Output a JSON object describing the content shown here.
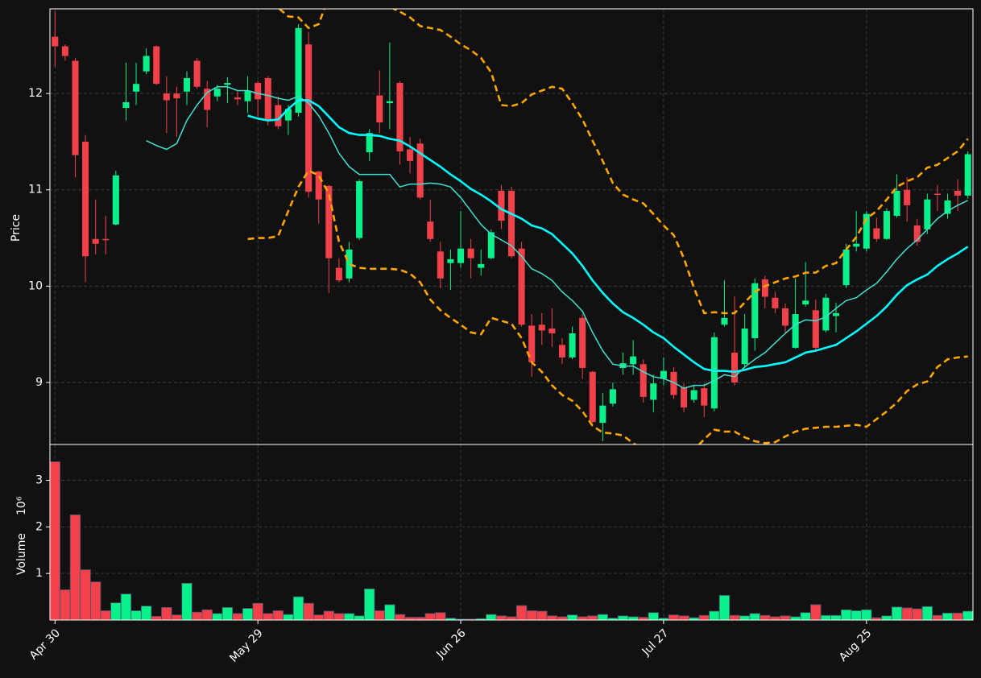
{
  "chart_data": {
    "type": "candlestick",
    "ylabel": "Price",
    "categories": [
      "Apr 30",
      null,
      null,
      null,
      null,
      null,
      null,
      null,
      null,
      null,
      null,
      null,
      null,
      null,
      null,
      null,
      null,
      null,
      null,
      null,
      "May 29",
      null,
      null,
      null,
      null,
      null,
      null,
      null,
      null,
      null,
      null,
      null,
      null,
      null,
      null,
      null,
      null,
      null,
      null,
      null,
      "Jun 26",
      null,
      null,
      null,
      null,
      null,
      null,
      null,
      null,
      null,
      null,
      null,
      null,
      null,
      null,
      null,
      null,
      null,
      null,
      null,
      "Jul 27",
      null,
      null,
      null,
      null,
      null,
      null,
      null,
      null,
      null,
      null,
      null,
      null,
      null,
      null,
      null,
      null,
      null,
      null,
      null,
      "Aug 25",
      null,
      null,
      null,
      null,
      null,
      null,
      null,
      null,
      null,
      null
    ],
    "open": [
      12.59,
      12.49,
      12.34,
      11.5,
      10.49,
      10.49,
      10.64,
      11.85,
      12.02,
      12.23,
      12.49,
      12.0,
      12.0,
      12.02,
      12.34,
      12.05,
      11.97,
      12.09,
      11.96,
      11.92,
      12.11,
      12.16,
      11.88,
      11.72,
      11.8,
      12.51,
      11.19,
      11.04,
      10.19,
      10.08,
      10.5,
      11.39,
      11.98,
      11.9,
      12.11,
      11.42,
      11.48,
      10.67,
      10.36,
      10.24,
      10.24,
      10.39,
      10.19,
      10.29,
      10.99,
      10.99,
      10.39,
      9.59,
      9.6,
      9.56,
      9.39,
      9.26,
      9.67,
      9.11,
      8.58,
      8.78,
      9.15,
      9.19,
      9.19,
      8.82,
      9.04,
      9.11,
      8.95,
      8.82,
      8.94,
      8.73,
      9.6,
      9.31,
      9.19,
      9.46,
      10.07,
      9.88,
      9.77,
      9.36,
      9.81,
      9.75,
      9.54,
      9.69,
      10.01,
      10.41,
      10.39,
      10.6,
      10.49,
      10.73,
      11.0,
      10.63,
      10.59,
      10.96,
      10.75,
      10.99,
      10.94
    ],
    "high": [
      12.85,
      12.51,
      12.37,
      11.57,
      10.9,
      10.73,
      11.2,
      12.32,
      12.32,
      12.47,
      12.5,
      12.18,
      12.07,
      12.23,
      12.37,
      12.13,
      12.09,
      12.17,
      12.02,
      12.18,
      12.13,
      12.18,
      11.97,
      11.88,
      12.72,
      12.64,
      11.2,
      11.05,
      10.29,
      10.46,
      11.11,
      11.63,
      12.24,
      12.53,
      12.13,
      11.55,
      11.53,
      10.9,
      10.46,
      10.38,
      10.78,
      10.49,
      10.38,
      10.59,
      11.05,
      11.03,
      10.46,
      9.71,
      9.72,
      9.77,
      9.46,
      9.58,
      9.71,
      9.12,
      8.89,
      9.0,
      9.31,
      9.44,
      9.24,
      9.08,
      9.26,
      9.16,
      8.99,
      8.97,
      8.99,
      9.52,
      10.06,
      9.89,
      9.71,
      10.08,
      10.11,
      9.94,
      9.82,
      10.08,
      10.25,
      9.86,
      9.92,
      9.83,
      10.44,
      10.78,
      10.78,
      10.71,
      10.81,
      11.16,
      11.13,
      10.7,
      10.96,
      11.05,
      10.96,
      11.11,
      11.4
    ],
    "low": [
      12.28,
      12.34,
      11.13,
      10.04,
      10.33,
      10.33,
      10.63,
      11.72,
      11.88,
      12.2,
      12.09,
      11.59,
      11.55,
      11.88,
      12.05,
      11.65,
      11.92,
      11.9,
      11.88,
      11.8,
      11.76,
      11.67,
      11.63,
      11.57,
      11.76,
      10.92,
      10.65,
      9.93,
      10.04,
      10.04,
      10.48,
      11.3,
      11.59,
      11.63,
      11.26,
      11.17,
      10.9,
      10.46,
      9.98,
      9.96,
      10.19,
      10.08,
      10.11,
      10.28,
      10.59,
      10.29,
      9.58,
      9.06,
      9.39,
      9.37,
      9.19,
      9.24,
      9.04,
      8.58,
      8.39,
      8.75,
      9.08,
      9.08,
      8.79,
      8.69,
      8.97,
      8.83,
      8.69,
      8.79,
      8.64,
      8.7,
      9.58,
      8.97,
      9.16,
      9.33,
      9.77,
      9.72,
      9.52,
      9.35,
      9.79,
      9.32,
      9.52,
      9.52,
      9.98,
      10.36,
      10.36,
      10.46,
      10.48,
      10.71,
      10.67,
      10.42,
      10.54,
      10.78,
      10.7,
      10.78,
      10.91
    ],
    "close": [
      12.49,
      12.39,
      11.36,
      10.31,
      10.44,
      10.48,
      11.15,
      11.91,
      12.1,
      12.39,
      12.1,
      11.93,
      11.95,
      12.16,
      12.07,
      11.83,
      12.05,
      12.11,
      11.94,
      12.03,
      11.94,
      11.72,
      11.66,
      11.84,
      12.68,
      10.98,
      10.9,
      10.29,
      10.06,
      10.38,
      11.09,
      11.59,
      11.7,
      11.92,
      11.4,
      11.3,
      10.92,
      10.49,
      10.08,
      10.28,
      10.39,
      10.29,
      10.23,
      10.56,
      10.68,
      10.31,
      9.6,
      9.21,
      9.54,
      9.51,
      9.26,
      9.51,
      9.15,
      8.59,
      8.76,
      8.93,
      9.2,
      9.27,
      8.85,
      8.99,
      9.12,
      8.87,
      8.74,
      8.92,
      8.76,
      9.47,
      9.67,
      9.0,
      9.56,
      10.03,
      9.89,
      9.77,
      9.59,
      9.71,
      9.85,
      9.36,
      9.88,
      9.72,
      10.38,
      10.44,
      10.75,
      10.49,
      10.78,
      10.99,
      10.84,
      10.46,
      10.9,
      10.95,
      10.89,
      10.94,
      11.37
    ],
    "up_color": "#08f08a",
    "down_color": "#f2414a",
    "overlays": [
      {
        "color": "#40e0d0",
        "width": 1.5,
        "dashed": false,
        "values": [
          null,
          null,
          null,
          null,
          null,
          null,
          null,
          null,
          null,
          11.51,
          11.46,
          11.42,
          11.48,
          11.72,
          11.88,
          12.01,
          12.07,
          12.07,
          12.03,
          12.03,
          12.0,
          11.98,
          11.95,
          11.93,
          11.97,
          11.9,
          11.77,
          11.59,
          11.38,
          11.24,
          11.16,
          11.16,
          11.16,
          11.16,
          11.03,
          11.06,
          11.06,
          11.07,
          11.06,
          11.03,
          10.92,
          10.78,
          10.64,
          10.54,
          10.48,
          10.42,
          10.31,
          10.18,
          10.13,
          10.06,
          9.94,
          9.85,
          9.74,
          9.52,
          9.33,
          9.19,
          9.17,
          9.17,
          9.11,
          9.06,
          9.04,
          9.0,
          8.94,
          8.97,
          8.97,
          9.02,
          9.08,
          9.06,
          9.16,
          9.24,
          9.31,
          9.41,
          9.51,
          9.6,
          9.65,
          9.64,
          9.68,
          9.77,
          9.85,
          9.88,
          9.96,
          10.03,
          10.15,
          10.28,
          10.39,
          10.48,
          10.59,
          10.7,
          10.78,
          10.84,
          10.89
        ]
      },
      {
        "color": "#00ffff",
        "width": 2.6,
        "dashed": false,
        "values": [
          null,
          null,
          null,
          null,
          null,
          null,
          null,
          null,
          null,
          null,
          null,
          null,
          null,
          null,
          null,
          null,
          null,
          null,
          null,
          11.77,
          11.74,
          11.72,
          11.73,
          11.84,
          11.93,
          11.93,
          11.87,
          11.76,
          11.65,
          11.59,
          11.57,
          11.57,
          11.56,
          11.53,
          11.51,
          11.45,
          11.38,
          11.31,
          11.24,
          11.16,
          11.09,
          11.01,
          10.95,
          10.88,
          10.8,
          10.75,
          10.7,
          10.63,
          10.6,
          10.54,
          10.44,
          10.34,
          10.21,
          10.06,
          9.93,
          9.82,
          9.73,
          9.67,
          9.6,
          9.52,
          9.46,
          9.37,
          9.29,
          9.21,
          9.14,
          9.12,
          9.12,
          9.11,
          9.13,
          9.16,
          9.17,
          9.19,
          9.21,
          9.26,
          9.31,
          9.33,
          9.36,
          9.39,
          9.46,
          9.53,
          9.61,
          9.69,
          9.79,
          9.91,
          10.01,
          10.07,
          10.12,
          10.21,
          10.28,
          10.34,
          10.41
        ]
      },
      {
        "color": "#ffa500",
        "width": 2.6,
        "dashed": true,
        "values": [
          null,
          null,
          null,
          null,
          null,
          null,
          null,
          null,
          null,
          null,
          null,
          null,
          null,
          null,
          null,
          null,
          null,
          null,
          null,
          13.31,
          13.18,
          13.01,
          12.89,
          12.8,
          12.79,
          12.68,
          12.72,
          13.01,
          13.14,
          13.18,
          13.18,
          13.14,
          13.01,
          12.9,
          12.85,
          12.79,
          12.7,
          12.68,
          12.66,
          12.59,
          12.51,
          12.45,
          12.37,
          12.22,
          11.88,
          11.87,
          11.9,
          11.99,
          12.03,
          12.07,
          12.05,
          11.9,
          11.73,
          11.51,
          11.3,
          11.07,
          10.95,
          10.9,
          10.86,
          10.75,
          10.63,
          10.53,
          10.29,
          9.98,
          9.72,
          9.73,
          9.72,
          9.72,
          9.83,
          9.94,
          10.0,
          10.04,
          10.08,
          10.1,
          10.14,
          10.14,
          10.21,
          10.24,
          10.38,
          10.51,
          10.7,
          10.78,
          10.9,
          11.03,
          11.09,
          11.13,
          11.23,
          11.26,
          11.33,
          11.4,
          11.53
        ]
      },
      {
        "color": "#ffa500",
        "width": 2.6,
        "dashed": true,
        "values": [
          null,
          null,
          null,
          null,
          null,
          null,
          null,
          null,
          null,
          null,
          null,
          null,
          null,
          null,
          null,
          null,
          null,
          null,
          null,
          10.49,
          10.5,
          10.5,
          10.52,
          10.78,
          11.03,
          11.2,
          11.15,
          10.96,
          10.46,
          10.23,
          10.19,
          10.18,
          10.18,
          10.18,
          10.17,
          10.13,
          10.04,
          9.86,
          9.75,
          9.67,
          9.6,
          9.52,
          9.5,
          9.67,
          9.64,
          9.61,
          9.46,
          9.21,
          9.11,
          8.97,
          8.87,
          8.81,
          8.7,
          8.55,
          8.48,
          8.47,
          8.45,
          8.37,
          8.3,
          8.27,
          8.22,
          8.2,
          8.24,
          8.3,
          8.41,
          8.51,
          8.49,
          8.49,
          8.43,
          8.39,
          8.37,
          8.38,
          8.44,
          8.49,
          8.52,
          8.53,
          8.54,
          8.54,
          8.55,
          8.56,
          8.54,
          8.62,
          8.7,
          8.79,
          8.91,
          8.98,
          9.01,
          9.16,
          9.24,
          9.26,
          9.27
        ]
      }
    ],
    "ylim": [
      8.356,
      12.879
    ],
    "yticks": [
      9,
      10,
      11,
      12
    ],
    "grid": true,
    "volume": {
      "ylabel": "Volume",
      "yunit": "10⁶",
      "values": [
        3.4,
        0.65,
        2.26,
        1.08,
        0.82,
        0.2,
        0.37,
        0.56,
        0.2,
        0.3,
        0.08,
        0.27,
        0.11,
        0.79,
        0.17,
        0.22,
        0.14,
        0.27,
        0.14,
        0.25,
        0.36,
        0.14,
        0.2,
        0.12,
        0.5,
        0.36,
        0.11,
        0.19,
        0.14,
        0.14,
        0.09,
        0.67,
        0.2,
        0.33,
        0.12,
        0.06,
        0.06,
        0.14,
        0.16,
        0.04,
        0.02,
        0.02,
        0.03,
        0.12,
        0.09,
        0.07,
        0.31,
        0.2,
        0.19,
        0.09,
        0.07,
        0.11,
        0.07,
        0.09,
        0.12,
        0.04,
        0.09,
        0.07,
        0.06,
        0.16,
        0.04,
        0.11,
        0.09,
        0.05,
        0.1,
        0.19,
        0.53,
        0.1,
        0.09,
        0.14,
        0.1,
        0.07,
        0.09,
        0.07,
        0.16,
        0.33,
        0.1,
        0.1,
        0.22,
        0.2,
        0.22,
        0.05,
        0.09,
        0.28,
        0.26,
        0.24,
        0.29,
        0.1,
        0.15,
        0.15,
        0.19
      ],
      "ylim": [
        0,
        3.77
      ],
      "yticks": [
        1,
        2,
        3
      ]
    }
  }
}
